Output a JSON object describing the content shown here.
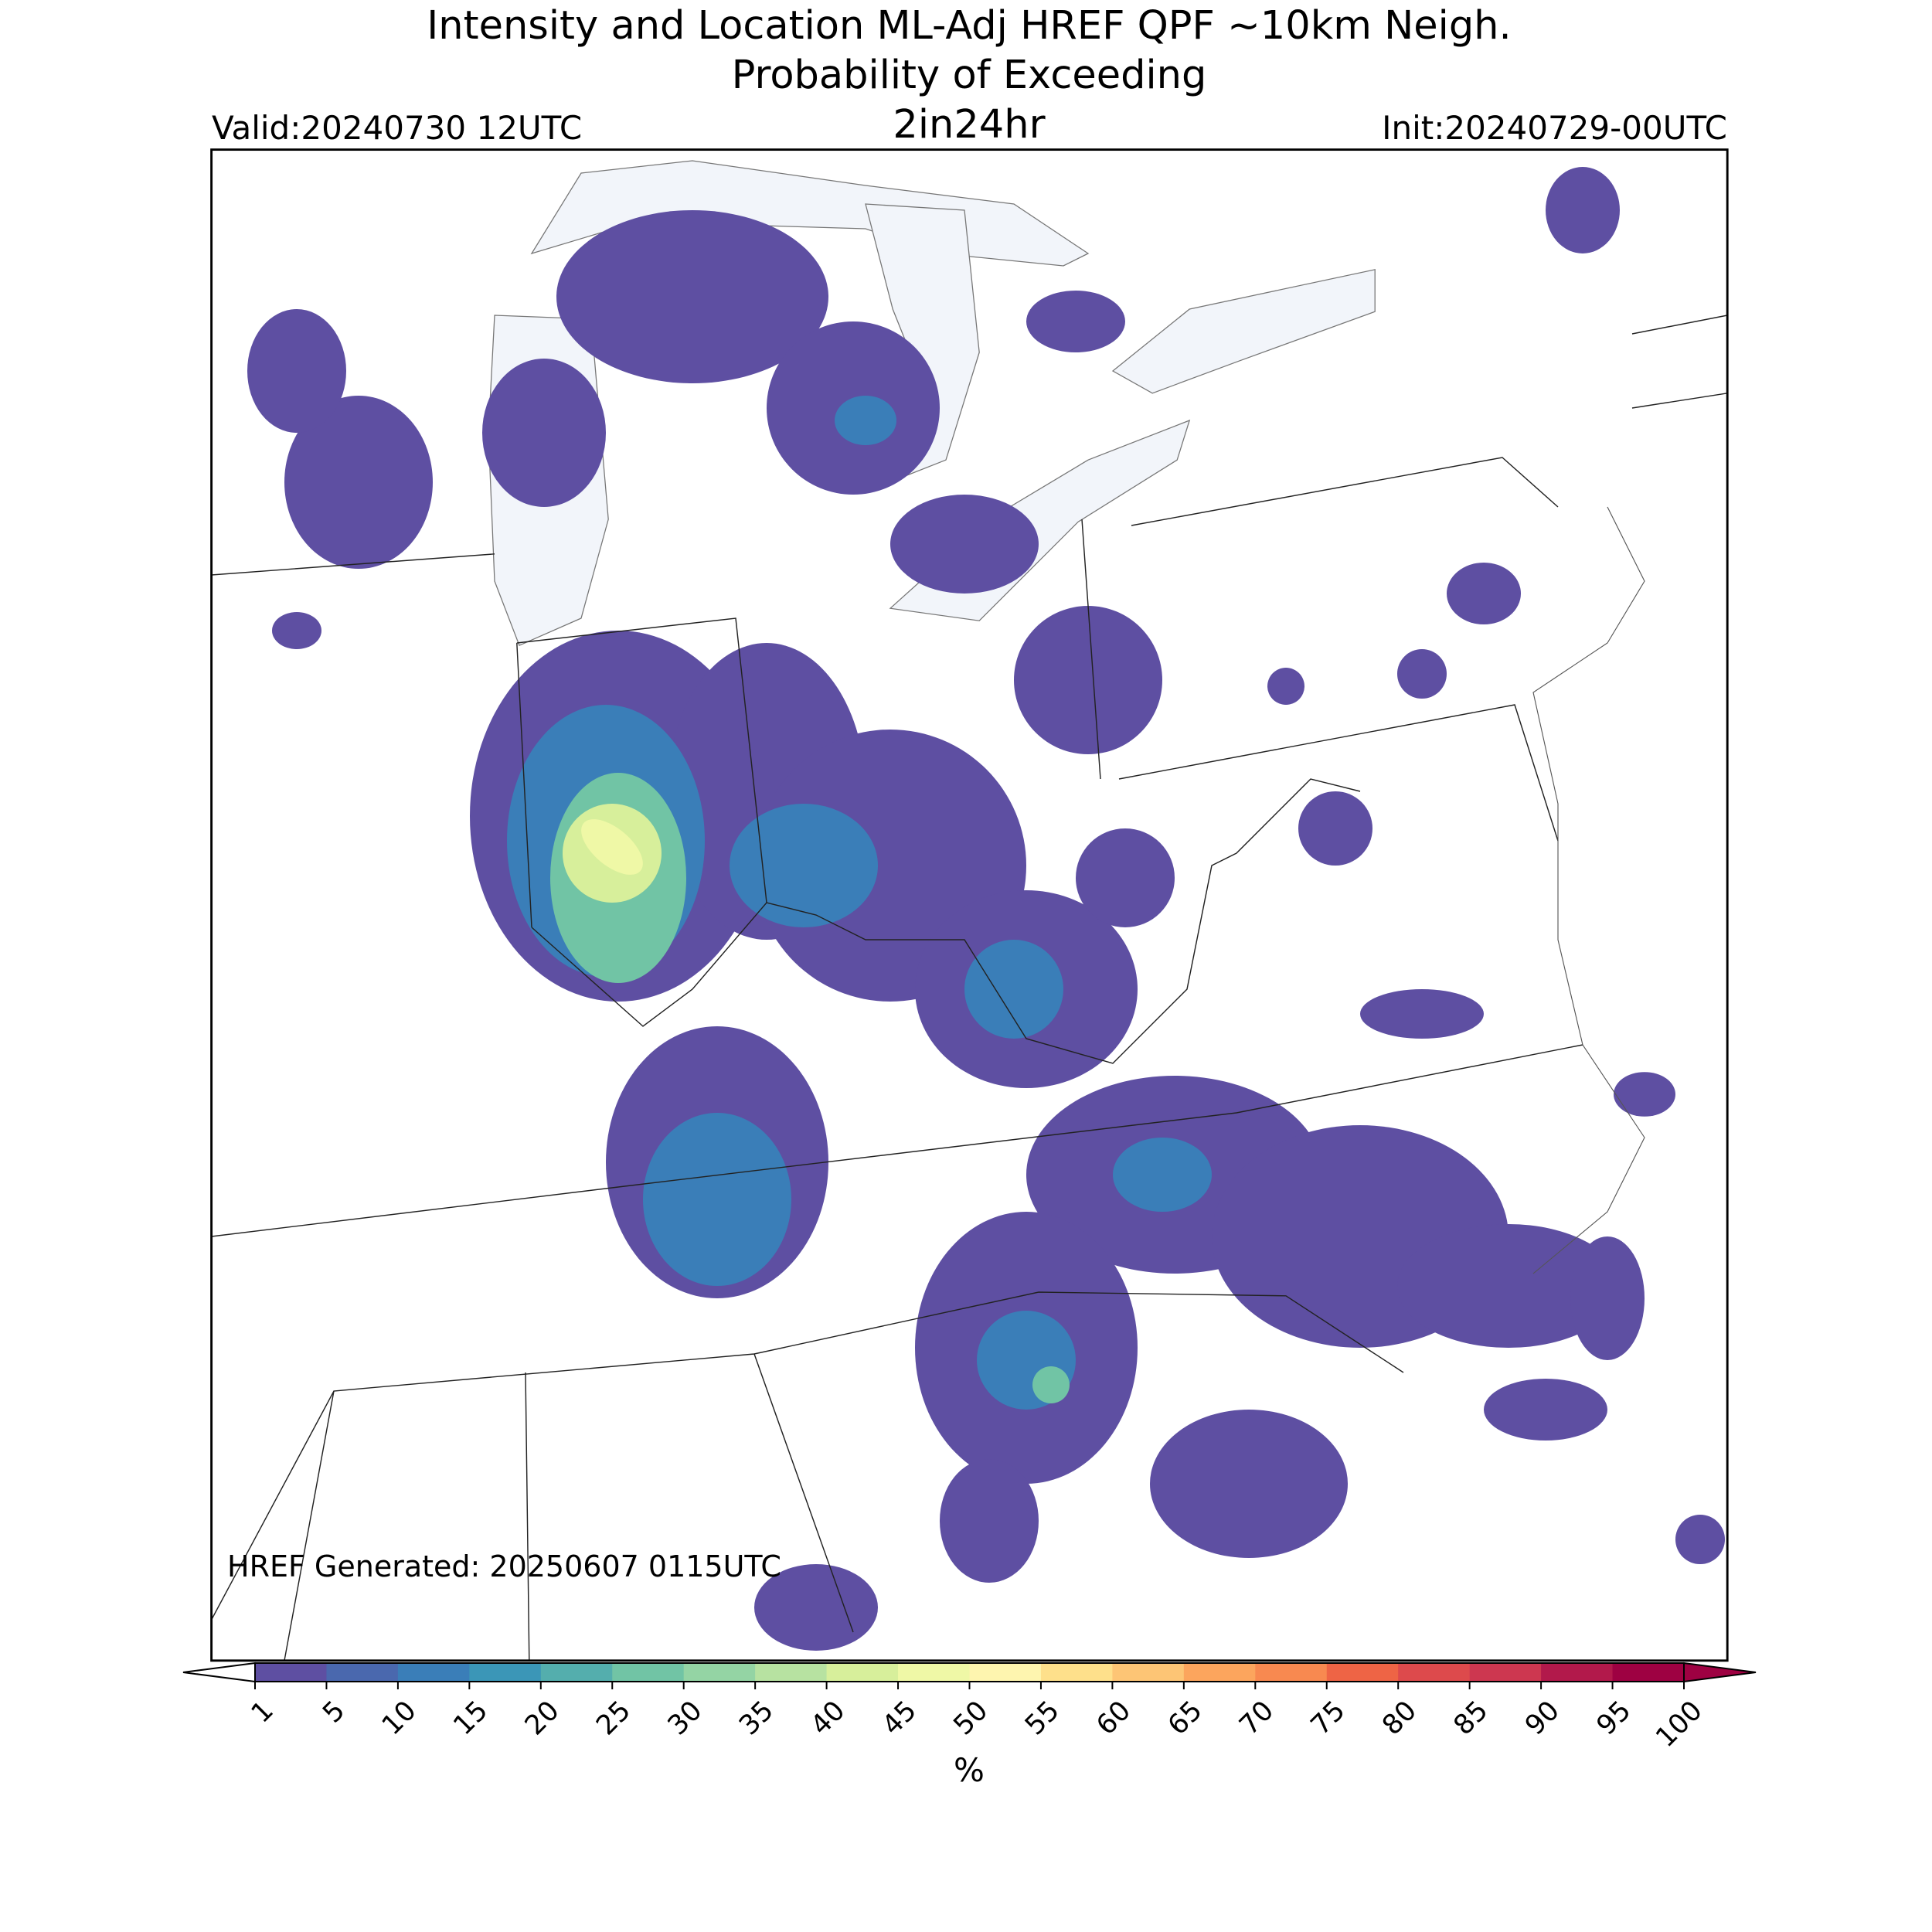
{
  "title": "Intensity and Location ML-Adj HREF QPF ~10km Neigh.",
  "subtitle": "Probability of Exceeding",
  "threshold": "2in24hr",
  "valid": "Valid:20240730 12UTC",
  "init": "Init:20240729-00UTC",
  "generated": "HREF Generated: 20250607 0115UTC",
  "colorbar": {
    "label": "%",
    "ticks": [
      1,
      5,
      10,
      15,
      20,
      25,
      30,
      35,
      40,
      45,
      50,
      55,
      60,
      65,
      70,
      75,
      80,
      85,
      90,
      95,
      100
    ],
    "colors": [
      "#5e4fa2",
      "#4a68ae",
      "#3a7eb8",
      "#3b96b7",
      "#54aead",
      "#71c4a5",
      "#94d4a4",
      "#b7e2a1",
      "#d7ef9b",
      "#eff8a6",
      "#fef5af",
      "#fee08b",
      "#fdc575",
      "#fca55d",
      "#f88950",
      "#ee6445",
      "#dd4a4c",
      "#cd3750",
      "#b2194b",
      "#9e0142"
    ],
    "under_color": "#ffffff",
    "over_color": "#9e0142"
  }
}
